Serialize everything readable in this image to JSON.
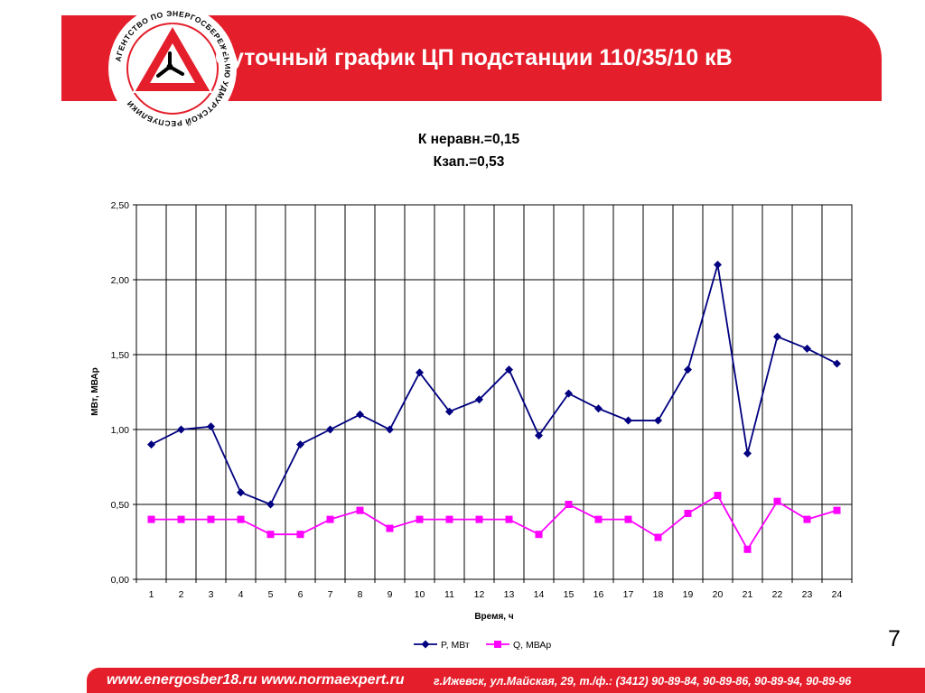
{
  "header": {
    "title": "Суточный график ЦП подстанции 110/35/10 кВ",
    "logo_text": "АГЕНТСТВО ПО ЭНЕРГОСБЕРЕЖЕНИЮ УДМУРТСКОЙ РЕСПУБЛИКИ"
  },
  "page_number": "7",
  "footer": {
    "sites": "www.energosber18.ru www.normaexpert.ru",
    "address": "г.Ижевск, ул.Майская, 29, т./ф.: (3412) 90-89-84, 90-89-86, 90-89-94, 90-89-96"
  },
  "colors": {
    "brand_red": "#e41e2b",
    "series_p": "#000080",
    "series_q": "#ff00ff"
  },
  "chart_data": {
    "type": "line",
    "title": "К неравн.=0,15",
    "subtitle": "Кзап.=0,53",
    "xlabel": "Время, ч",
    "ylabel": "МВт, МВАр",
    "x": [
      "1",
      "2",
      "3",
      "4",
      "5",
      "6",
      "7",
      "8",
      "9",
      "10",
      "11",
      "12",
      "13",
      "14",
      "15",
      "16",
      "17",
      "18",
      "19",
      "20",
      "21",
      "22",
      "23",
      "24"
    ],
    "ylim": [
      0,
      2.5
    ],
    "yticks": [
      "0,00",
      "0,50",
      "1,00",
      "1,50",
      "2,00",
      "2,50"
    ],
    "grid": true,
    "legend_position": "bottom",
    "series": [
      {
        "name": "P, МВт",
        "marker": "diamond",
        "values": [
          0.9,
          1.0,
          1.02,
          0.58,
          0.5,
          0.9,
          1.0,
          1.1,
          1.0,
          1.38,
          1.12,
          1.2,
          1.4,
          0.96,
          1.24,
          1.14,
          1.06,
          1.06,
          1.4,
          2.1,
          0.84,
          1.62,
          1.54,
          1.44
        ]
      },
      {
        "name": "Q, МВАр",
        "marker": "square",
        "values": [
          0.4,
          0.4,
          0.4,
          0.4,
          0.3,
          0.3,
          0.4,
          0.46,
          0.34,
          0.4,
          0.4,
          0.4,
          0.4,
          0.3,
          0.5,
          0.4,
          0.4,
          0.28,
          0.44,
          0.56,
          0.2,
          0.52,
          0.4,
          0.46
        ]
      }
    ]
  }
}
